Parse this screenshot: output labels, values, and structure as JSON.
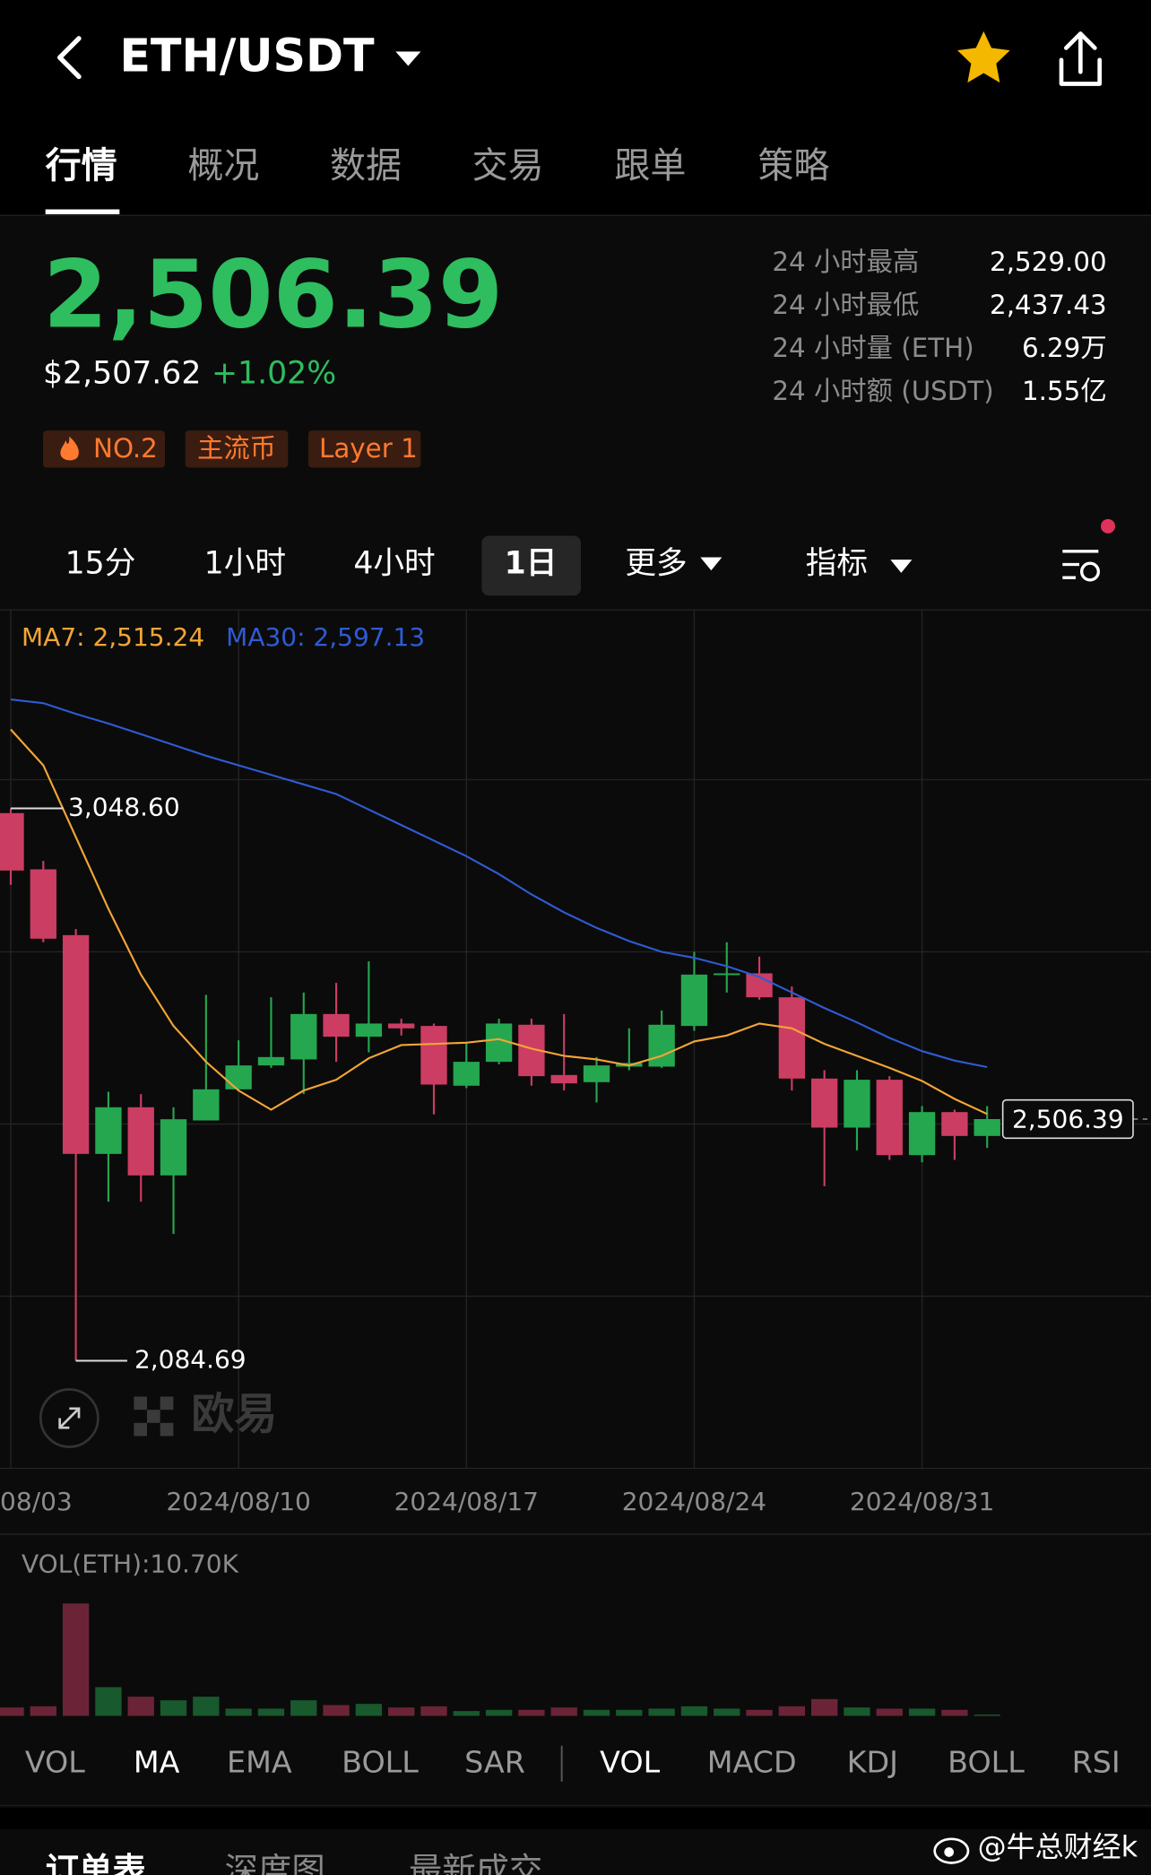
{
  "header": {
    "pair": "ETH/USDT"
  },
  "tabs": [
    "行情",
    "概况",
    "数据",
    "交易",
    "跟单",
    "策略"
  ],
  "price": {
    "last": "2,506.39",
    "usd": "$2,507.62",
    "change": "+1.02%"
  },
  "tags": [
    "NO.2",
    "主流币",
    "Layer 1"
  ],
  "stats": [
    {
      "label": "24 小时最高",
      "value": "2,529.00"
    },
    {
      "label": "24 小时最低",
      "value": "2,437.43"
    },
    {
      "label": "24 小时量 (ETH)",
      "value": "6.29万"
    },
    {
      "label": "24 小时额 (USDT)",
      "value": "1.55亿"
    }
  ],
  "intervals": [
    "15分",
    "1小时",
    "4小时",
    "1日",
    "更多",
    "指标"
  ],
  "chart_data": {
    "type": "candlestick",
    "categories": [
      "08/03",
      null,
      null,
      null,
      null,
      null,
      null,
      "2024/08/10",
      null,
      null,
      null,
      null,
      null,
      null,
      "2024/08/17",
      null,
      null,
      null,
      null,
      null,
      null,
      "2024/08/24",
      null,
      null,
      null,
      null,
      null,
      null,
      "2024/08/31",
      null,
      null
    ],
    "open": [
      3040.3,
      2942.2,
      2827.4,
      2445.6,
      2527.0,
      2408.1,
      2504.0,
      2558.3,
      2600.0,
      2610.5,
      2689.7,
      2650.1,
      2673.1,
      2668.9,
      2564.6,
      2606.3,
      2671.0,
      2583.3,
      2570.8,
      2597.9,
      2597.9,
      2668.9,
      2758.5,
      2760.7,
      2718.9,
      2577.1,
      2491.5,
      2575.0,
      2443.5,
      2518.6,
      2476.9
    ],
    "high": [
      3048.6,
      2956.8,
      2837.9,
      2554.1,
      2550.0,
      2527.0,
      2723.1,
      2643.8,
      2718.9,
      2727.3,
      2744.0,
      2781.5,
      2681.4,
      2673.1,
      2639.7,
      2681.4,
      2681.4,
      2689.7,
      2614.6,
      2664.7,
      2696.0,
      2798.2,
      2814.9,
      2789.9,
      2737.7,
      2591.7,
      2591.7,
      2581.3,
      2529.1,
      2522.8,
      2529.0
    ],
    "low": [
      2915.1,
      2815.0,
      2084.69,
      2362.2,
      2362.2,
      2305.8,
      2504.0,
      2556.2,
      2595.8,
      2550.0,
      2606.3,
      2623.0,
      2652.2,
      2514.5,
      2560.4,
      2602.1,
      2564.6,
      2556.2,
      2535.3,
      2591.7,
      2595.8,
      2660.5,
      2727.3,
      2714.8,
      2556.2,
      2389.3,
      2451.9,
      2435.2,
      2431.0,
      2435.2,
      2456.1
    ],
    "close": [
      2940.1,
      2821.2,
      2445.6,
      2527.0,
      2408.1,
      2506.1,
      2558.3,
      2600.0,
      2614.6,
      2689.7,
      2650.1,
      2673.1,
      2664.7,
      2566.6,
      2606.3,
      2673.1,
      2581.3,
      2568.7,
      2600.0,
      2604.2,
      2671.0,
      2758.5,
      2760.7,
      2718.9,
      2577.1,
      2491.5,
      2575.0,
      2443.5,
      2518.6,
      2476.9,
      2506.39
    ],
    "up_color": "#25a750",
    "down_color": "#cc3d63",
    "ylim": [
      1896.9,
      3394.9
    ],
    "series": [
      {
        "name": "MA7: 2,515.24",
        "color": "#f3a536",
        "values": [
          3186.3,
          3123.7,
          2998.5,
          2873.3,
          2758.6,
          2668.9,
          2606.3,
          2556.2,
          2522.8,
          2556.2,
          2575.0,
          2612.5,
          2635.5,
          2637.6,
          2639.7,
          2645.9,
          2629.3,
          2616.7,
          2610.5,
          2600.0,
          2616.7,
          2641.8,
          2652.2,
          2673.1,
          2664.7,
          2637.6,
          2616.7,
          2595.8,
          2572.9,
          2541.6,
          2515.24
        ]
      },
      {
        "name": "MA30: 2,597.13",
        "color": "#2f5bd3",
        "values": [
          3238.5,
          3232.2,
          3213.4,
          3196.7,
          3178.0,
          3159.2,
          3140.4,
          3123.7,
          3107.0,
          3090.3,
          3073.6,
          3046.5,
          3019.4,
          2992.3,
          2965.1,
          2933.8,
          2898.4,
          2867.1,
          2840.0,
          2817.0,
          2798.2,
          2787.8,
          2773.2,
          2754.4,
          2727.3,
          2700.2,
          2675.1,
          2648.0,
          2625.0,
          2608.4,
          2597.13
        ]
      }
    ],
    "high_label": {
      "value": 3048.6,
      "label": "3,048.60"
    },
    "low_label": {
      "value": 2084.69,
      "label": "2,084.69"
    },
    "last_price": {
      "value": 2506.39,
      "label": "2,506.39"
    },
    "volume": {
      "title": "VOL(ETH):10.70K",
      "values": [
        70,
        80,
        940,
        240,
        160,
        130,
        160,
        60,
        60,
        130,
        90,
        100,
        70,
        80,
        40,
        50,
        50,
        70,
        50,
        50,
        60,
        80,
        60,
        50,
        80,
        140,
        70,
        60,
        60,
        50,
        10.7
      ],
      "ylim": [
        0,
        1350
      ]
    }
  },
  "watermark_logo": "欧易",
  "indicators": [
    "VOL",
    "MA",
    "EMA",
    "BOLL",
    "SAR",
    "VOL",
    "MACD",
    "KDJ",
    "BOLL",
    "RSI"
  ],
  "bottom_tabs": [
    "订单表",
    "深度图",
    "最新成交"
  ],
  "credit": "@牛总财经k"
}
